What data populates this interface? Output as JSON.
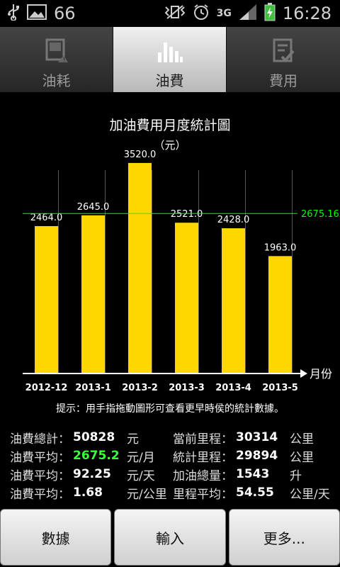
{
  "status": {
    "notification_count": "66",
    "network": "3G",
    "time": "16:28"
  },
  "tabs": [
    {
      "label": "油耗",
      "icon": "fuel-consumption-icon",
      "active": false
    },
    {
      "label": "油費",
      "icon": "bar-chart-icon",
      "active": true
    },
    {
      "label": "費用",
      "icon": "checklist-icon",
      "active": false
    }
  ],
  "chart": {
    "title": "加油費用月度統計圖",
    "subtitle": "（元）",
    "xunit": "月份",
    "hint": "提示：用手指拖動圖形可查看更早時侯的統計數據。"
  },
  "chart_data": {
    "type": "bar",
    "categories": [
      "2012-12",
      "2013-1",
      "2013-2",
      "2013-3",
      "2013-4",
      "2013-5"
    ],
    "values": [
      2464.0,
      2645.0,
      3520.0,
      2521.0,
      2428.0,
      1963.0
    ],
    "value_labels": [
      "2464.0",
      "2645.0",
      "3520.0",
      "2521.0",
      "2428.0",
      "1963.0"
    ],
    "average": 2675.16,
    "average_label": "2675.16",
    "bar_color": "#ffd700",
    "average_line_color": "#00ff00",
    "ylim": [
      0,
      4230
    ]
  },
  "stats": {
    "rows": [
      {
        "l_label": "油費總計：",
        "l_value": "50828",
        "l_unit": "元",
        "r_label": "當前里程：",
        "r_value": "30314",
        "r_unit": "公里"
      },
      {
        "l_label": "油費平均：",
        "l_value": "2675.2",
        "l_unit": "元/月",
        "r_label": "統計里程：",
        "r_value": "29894",
        "r_unit": "公里"
      },
      {
        "l_label": "油費平均：",
        "l_value": "92.25",
        "l_unit": "元/天",
        "r_label": "加油總量：",
        "r_value": "1543",
        "r_unit": "升"
      },
      {
        "l_label": "油費平均：",
        "l_value": "1.68",
        "l_unit": "元/公里",
        "r_label": "里程平均：",
        "r_value": "54.55",
        "r_unit": "公里/天"
      }
    ]
  },
  "buttons": {
    "data": "數據",
    "input": "輸入",
    "more": "更多..."
  }
}
